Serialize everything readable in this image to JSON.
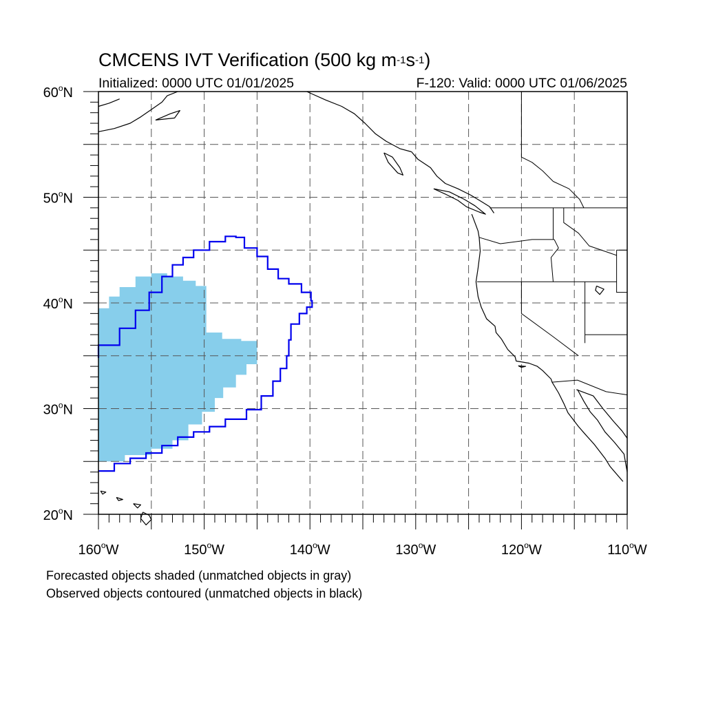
{
  "title": {
    "prefix": "CMCENS IVT Verification (500 kg m",
    "exp1": "-1",
    "mid": "s",
    "exp2": "-1",
    "suffix": ")"
  },
  "subtitle_left": "Initialized: 0000 UTC 01/01/2025",
  "subtitle_right": "F-120: Valid: 0000 UTC 01/06/2025",
  "lat_labels": [
    "20",
    "30",
    "40",
    "50",
    "60"
  ],
  "lon_labels": [
    "160",
    "150",
    "140",
    "130",
    "120",
    "110"
  ],
  "lat_values": [
    20,
    30,
    40,
    50,
    60
  ],
  "lon_values": [
    -160,
    -150,
    -140,
    -130,
    -120,
    -110
  ],
  "lat_suffix": "N",
  "lon_suffix": "W",
  "map_extent": {
    "lon": [
      -160,
      -110
    ],
    "lat": [
      20,
      60
    ]
  },
  "grid": {
    "lon_step": 5,
    "lat_step": 5,
    "style": "dashed"
  },
  "colors": {
    "forecast_fill": "#87ceeb",
    "observed_contour": "#0000ee",
    "coastline": "#000000",
    "grid": "#555555"
  },
  "forecast_object": {
    "label": "forecast-shaded-object",
    "outline_lonlat": [
      [
        -160,
        25.0
      ],
      [
        -157.5,
        25.6
      ],
      [
        -155.0,
        26.2
      ],
      [
        -153.0,
        27.0
      ],
      [
        -151.5,
        28.5
      ],
      [
        -150.2,
        29.7
      ],
      [
        -149.0,
        31.0
      ],
      [
        -148.2,
        32.0
      ],
      [
        -147.0,
        33.2
      ],
      [
        -146.0,
        34.2
      ],
      [
        -145.0,
        35.5
      ],
      [
        -145.0,
        36.4
      ],
      [
        -146.5,
        36.6
      ],
      [
        -148.3,
        37.2
      ],
      [
        -149.8,
        38.0
      ],
      [
        -149.8,
        41.6
      ],
      [
        -150.8,
        42.1
      ],
      [
        -152.0,
        42.5
      ],
      [
        -153.5,
        42.8
      ],
      [
        -155.0,
        42.5
      ],
      [
        -156.5,
        41.5
      ],
      [
        -158.0,
        40.6
      ],
      [
        -159.0,
        39.5
      ],
      [
        -160,
        38.6
      ]
    ]
  },
  "observed_object": {
    "label": "observed-contour-object",
    "outline_lonlat": [
      [
        -160,
        24.1
      ],
      [
        -158.5,
        24.8
      ],
      [
        -157.0,
        25.3
      ],
      [
        -155.5,
        25.8
      ],
      [
        -154.0,
        26.5
      ],
      [
        -152.5,
        27.3
      ],
      [
        -151.0,
        27.8
      ],
      [
        -149.5,
        28.3
      ],
      [
        -148.0,
        29.0
      ],
      [
        -146.0,
        29.9
      ],
      [
        -144.6,
        31.2
      ],
      [
        -143.5,
        32.6
      ],
      [
        -142.8,
        33.8
      ],
      [
        -142.2,
        35.0
      ],
      [
        -142.0,
        36.5
      ],
      [
        -141.8,
        38.0
      ],
      [
        -141.0,
        39.0
      ],
      [
        -140.3,
        39.6
      ],
      [
        -139.8,
        40.2
      ],
      [
        -139.9,
        41.0
      ],
      [
        -140.8,
        41.8
      ],
      [
        -142.0,
        42.3
      ],
      [
        -143.0,
        43.2
      ],
      [
        -144.0,
        44.4
      ],
      [
        -145.0,
        45.2
      ],
      [
        -146.2,
        46.2
      ],
      [
        -147.0,
        46.3
      ],
      [
        -148.0,
        45.8
      ],
      [
        -149.5,
        45.0
      ],
      [
        -151.0,
        44.3
      ],
      [
        -152.0,
        43.6
      ],
      [
        -153.0,
        42.5
      ],
      [
        -154.0,
        41.0
      ],
      [
        -155.2,
        39.3
      ],
      [
        -156.5,
        37.6
      ],
      [
        -158.0,
        36.0
      ],
      [
        -160,
        34.8
      ]
    ]
  },
  "coastlines": [
    {
      "name": "alaska-west",
      "points": [
        [
          -160,
          56.2
        ],
        [
          -158.5,
          56.5
        ],
        [
          -157,
          57.0
        ],
        [
          -156,
          57.6
        ],
        [
          -155,
          58.3
        ],
        [
          -154,
          59.0
        ],
        [
          -153.5,
          59.6
        ],
        [
          -152.5,
          60.0
        ]
      ]
    },
    {
      "name": "alaska-upper",
      "points": [
        [
          -160,
          58.6
        ],
        [
          -159,
          58.9
        ],
        [
          -158,
          59.3
        ]
      ]
    },
    {
      "name": "kodiak-island",
      "points": [
        [
          -154.6,
          57.3
        ],
        [
          -153.2,
          57.9
        ],
        [
          -152.3,
          58.2
        ],
        [
          -152.8,
          57.5
        ],
        [
          -154.6,
          57.3
        ]
      ]
    },
    {
      "name": "alaska-panhandle-coast",
      "points": [
        [
          -140.3,
          60.0
        ],
        [
          -138.5,
          59.2
        ],
        [
          -137,
          58.6
        ],
        [
          -135.8,
          57.9
        ],
        [
          -134.8,
          57.0
        ],
        [
          -133.8,
          56.0
        ],
        [
          -132.8,
          55.3
        ],
        [
          -131.5,
          54.6
        ],
        [
          -130.4,
          54.3
        ]
      ]
    },
    {
      "name": "haida-gwaii",
      "points": [
        [
          -133.0,
          54.2
        ],
        [
          -132.2,
          53.8
        ],
        [
          -131.5,
          52.8
        ],
        [
          -131.2,
          52.1
        ],
        [
          -131.7,
          52.3
        ],
        [
          -132.6,
          53.3
        ],
        [
          -133.0,
          54.2
        ]
      ]
    },
    {
      "name": "bc-coast",
      "points": [
        [
          -130.4,
          54.3
        ],
        [
          -129.8,
          53.6
        ],
        [
          -128.6,
          52.8
        ],
        [
          -128.0,
          52.0
        ],
        [
          -127.2,
          51.3
        ],
        [
          -126.0,
          50.8
        ],
        [
          -124.8,
          50.2
        ],
        [
          -123.8,
          49.6
        ],
        [
          -123.0,
          49.1
        ],
        [
          -122.6,
          48.5
        ]
      ]
    },
    {
      "name": "vancouver-island",
      "points": [
        [
          -128.3,
          50.8
        ],
        [
          -127.2,
          50.3
        ],
        [
          -126.0,
          49.7
        ],
        [
          -125.2,
          49.1
        ],
        [
          -124.0,
          48.6
        ],
        [
          -123.4,
          48.4
        ],
        [
          -124.4,
          49.2
        ],
        [
          -125.4,
          49.8
        ],
        [
          -126.8,
          50.5
        ],
        [
          -128.3,
          50.8
        ]
      ]
    },
    {
      "name": "us-west-coast",
      "points": [
        [
          -124.7,
          48.4
        ],
        [
          -124.1,
          46.8
        ],
        [
          -124.0,
          46.2
        ],
        [
          -123.9,
          44.9
        ],
        [
          -124.1,
          43.3
        ],
        [
          -124.3,
          42.0
        ],
        [
          -124.1,
          40.6
        ],
        [
          -123.8,
          39.6
        ],
        [
          -123.3,
          38.5
        ],
        [
          -122.5,
          37.8
        ],
        [
          -122.4,
          37.2
        ],
        [
          -121.9,
          36.6
        ],
        [
          -121.3,
          35.6
        ],
        [
          -120.6,
          34.9
        ],
        [
          -120.5,
          34.5
        ],
        [
          -119.3,
          34.3
        ],
        [
          -118.5,
          34.0
        ],
        [
          -118.0,
          33.6
        ],
        [
          -117.2,
          32.8
        ],
        [
          -117.1,
          32.5
        ],
        [
          -116.5,
          31.5
        ],
        [
          -116.0,
          30.5
        ],
        [
          -115.6,
          29.6
        ],
        [
          -114.6,
          28.3
        ],
        [
          -114.0,
          27.6
        ],
        [
          -113.1,
          26.6
        ],
        [
          -112.1,
          25.3
        ],
        [
          -111.6,
          24.5
        ],
        [
          -110.4,
          23.1
        ]
      ]
    },
    {
      "name": "gulf-of-california",
      "points": [
        [
          -114.7,
          31.8
        ],
        [
          -114.1,
          30.7
        ],
        [
          -113.5,
          29.7
        ],
        [
          -112.8,
          28.9
        ],
        [
          -112.1,
          27.8
        ],
        [
          -111.2,
          26.8
        ],
        [
          -110.3,
          25.7
        ],
        [
          -110.0,
          24.0
        ]
      ]
    },
    {
      "name": "mexico-mainland",
      "points": [
        [
          -114.8,
          31.8
        ],
        [
          -113.2,
          31.2
        ],
        [
          -112.3,
          30.0
        ],
        [
          -111.3,
          28.8
        ],
        [
          -110.5,
          27.9
        ],
        [
          -110.0,
          27.2
        ]
      ]
    },
    {
      "name": "hawaii-big-island",
      "points": [
        [
          -155.8,
          20.2
        ],
        [
          -155.2,
          19.9
        ],
        [
          -155.0,
          19.5
        ],
        [
          -155.5,
          19.0
        ],
        [
          -156.0,
          19.6
        ],
        [
          -155.8,
          20.2
        ]
      ]
    },
    {
      "name": "hawaii-maui",
      "points": [
        [
          -156.7,
          21.0
        ],
        [
          -156.0,
          20.9
        ],
        [
          -156.3,
          20.6
        ],
        [
          -156.7,
          21.0
        ]
      ]
    },
    {
      "name": "hawaii-oahu",
      "points": [
        [
          -158.3,
          21.6
        ],
        [
          -157.7,
          21.4
        ],
        [
          -158.1,
          21.3
        ],
        [
          -158.3,
          21.6
        ]
      ]
    },
    {
      "name": "hawaii-kauai",
      "points": [
        [
          -159.8,
          22.2
        ],
        [
          -159.3,
          22.1
        ],
        [
          -159.6,
          21.9
        ],
        [
          -159.8,
          22.2
        ]
      ]
    },
    {
      "name": "great-salt-lake",
      "points": [
        [
          -112.9,
          41.6
        ],
        [
          -112.2,
          41.3
        ],
        [
          -112.6,
          40.8
        ],
        [
          -113.0,
          41.2
        ],
        [
          -112.9,
          41.6
        ]
      ]
    },
    {
      "name": "channel-islands",
      "points": [
        [
          -120.3,
          34.05
        ],
        [
          -119.6,
          34.0
        ],
        [
          -120.0,
          33.9
        ],
        [
          -120.3,
          34.05
        ]
      ]
    }
  ],
  "borders": [
    {
      "name": "us-canada-49",
      "points": [
        [
          -123.0,
          49.0
        ],
        [
          -110,
          49.0
        ]
      ]
    },
    {
      "name": "canada-bc-alberta",
      "points": [
        [
          -120.0,
          60.0
        ],
        [
          -120.0,
          53.8
        ],
        [
          -119.0,
          53.3
        ],
        [
          -118.0,
          52.5
        ],
        [
          -117.0,
          51.5
        ],
        [
          -115.5,
          50.8
        ],
        [
          -114.5,
          49.8
        ],
        [
          -114.1,
          49.0
        ]
      ]
    },
    {
      "name": "or-wa",
      "points": [
        [
          -124.0,
          46.2
        ],
        [
          -122.0,
          45.6
        ],
        [
          -119.0,
          46.0
        ],
        [
          -116.9,
          46.0
        ]
      ]
    },
    {
      "name": "wa-id",
      "points": [
        [
          -117.0,
          49.0
        ],
        [
          -117.0,
          46.0
        ]
      ]
    },
    {
      "name": "or-id",
      "points": [
        [
          -116.9,
          46.0
        ],
        [
          -116.5,
          45.2
        ],
        [
          -117.2,
          44.3
        ],
        [
          -117.0,
          42.0
        ]
      ]
    },
    {
      "name": "ca-or-nv-id-42",
      "points": [
        [
          -124.2,
          42.0
        ],
        [
          -111.0,
          42.0
        ]
      ]
    },
    {
      "name": "ca-nv",
      "points": [
        [
          -120.0,
          42.0
        ],
        [
          -120.0,
          39.0
        ],
        [
          -117.0,
          36.8
        ],
        [
          -114.6,
          35.0
        ]
      ]
    },
    {
      "name": "nv-ut",
      "points": [
        [
          -114.0,
          42.0
        ],
        [
          -114.0,
          36.2
        ]
      ]
    },
    {
      "name": "id-mt",
      "points": [
        [
          -116.0,
          49.0
        ],
        [
          -116.0,
          47.6
        ],
        [
          -114.6,
          46.6
        ],
        [
          -113.6,
          45.4
        ],
        [
          -111.0,
          44.5
        ]
      ]
    },
    {
      "name": "ut-az",
      "points": [
        [
          -114.0,
          37.0
        ],
        [
          -110,
          37.0
        ]
      ]
    },
    {
      "name": "ut-co-wy",
      "points": [
        [
          -111.0,
          45.0
        ],
        [
          -111.0,
          41.0
        ],
        [
          -110,
          41.0
        ]
      ]
    },
    {
      "name": "mt-wy",
      "points": [
        [
          -111.0,
          45.0
        ],
        [
          -110,
          45.0
        ]
      ]
    },
    {
      "name": "us-mexico",
      "points": [
        [
          -117.1,
          32.5
        ],
        [
          -114.7,
          32.7
        ],
        [
          -112.0,
          31.6
        ],
        [
          -110,
          31.3
        ]
      ]
    }
  ],
  "footnotes": [
    "Forecasted objects shaded (unmatched objects in gray)",
    "Observed objects contoured (unmatched objects in black)"
  ]
}
